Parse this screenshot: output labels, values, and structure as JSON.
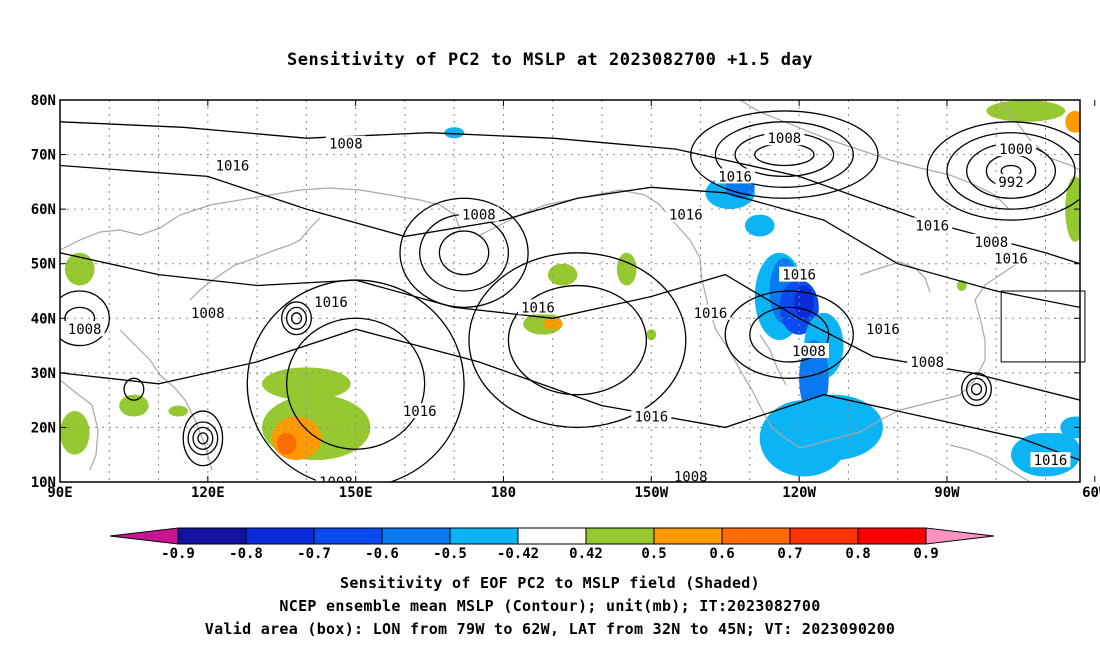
{
  "title": "Sensitivity of PC2 to MSLP at 2023082700 +1.5 day",
  "lat_labels": [
    "80N",
    "70N",
    "60N",
    "50N",
    "40N",
    "30N",
    "20N",
    "10N"
  ],
  "lon_labels": [
    "90E",
    "120E",
    "150E",
    "180",
    "150W",
    "120W",
    "90W",
    "60W"
  ],
  "map": {
    "lon_range_deg_east": [
      90,
      297
    ],
    "lat_range": [
      10,
      80
    ],
    "grid_interval_deg": 10,
    "grid_style": "dotted",
    "land_outline_color": "#a8a8a8",
    "contour_color": "#000000",
    "valid_box": {
      "lon_west_deg": 79,
      "lon_east_deg": 62,
      "lat_south": 32,
      "lat_north": 45
    }
  },
  "contour_labels": [
    {
      "text": "1008",
      "lon": 148,
      "lat": 72
    },
    {
      "text": "1016",
      "lon": 125,
      "lat": 68
    },
    {
      "text": "1008",
      "lon": 237,
      "lat": 73
    },
    {
      "text": "1016",
      "lon": 227,
      "lat": 66
    },
    {
      "text": "1016",
      "lon": 217,
      "lat": 59
    },
    {
      "text": "1000",
      "lon": 284,
      "lat": 71
    },
    {
      "text": "992",
      "lon": 283,
      "lat": 65
    },
    {
      "text": "1008",
      "lon": 175,
      "lat": 59
    },
    {
      "text": "1016",
      "lon": 267,
      "lat": 57
    },
    {
      "text": "1008",
      "lon": 279,
      "lat": 54
    },
    {
      "text": "1016",
      "lon": 283,
      "lat": 51
    },
    {
      "text": "1016",
      "lon": 145,
      "lat": 43
    },
    {
      "text": "1008",
      "lon": 120,
      "lat": 41
    },
    {
      "text": "1008",
      "lon": 95,
      "lat": 38
    },
    {
      "text": "1016",
      "lon": 187,
      "lat": 42
    },
    {
      "text": "1016",
      "lon": 240,
      "lat": 48
    },
    {
      "text": "1016",
      "lon": 222,
      "lat": 41
    },
    {
      "text": "1016",
      "lon": 257,
      "lat": 38
    },
    {
      "text": "1008",
      "lon": 242,
      "lat": 34
    },
    {
      "text": "1008",
      "lon": 266,
      "lat": 32
    },
    {
      "text": "1016",
      "lon": 163,
      "lat": 23
    },
    {
      "text": "1016",
      "lon": 210,
      "lat": 22
    },
    {
      "text": "1008",
      "lon": 146,
      "lat": 10
    },
    {
      "text": "1008",
      "lon": 218,
      "lat": 11
    },
    {
      "text": "1016",
      "lon": 291,
      "lat": 14
    }
  ],
  "contour_lines": [
    {
      "center": [
        237,
        70
      ],
      "rx": [
        6,
        10,
        14,
        19
      ],
      "ry": [
        2,
        4,
        6,
        8
      ]
    },
    {
      "center": [
        283,
        67
      ],
      "rx": [
        2,
        5,
        9,
        13,
        17
      ],
      "ry": [
        1,
        3,
        5,
        7,
        9
      ]
    },
    {
      "center": [
        172,
        52
      ],
      "rx": [
        5,
        9,
        13
      ],
      "ry": [
        4,
        7,
        10
      ]
    },
    {
      "center": [
        138,
        40
      ],
      "rx": [
        1,
        2,
        3
      ],
      "ry": [
        1,
        2,
        3
      ]
    },
    {
      "center": [
        276,
        27
      ],
      "rx": [
        1,
        2,
        3
      ],
      "ry": [
        1,
        2,
        3
      ]
    },
    {
      "center": [
        119,
        18
      ],
      "rx": [
        1,
        2,
        3,
        4
      ],
      "ry": [
        1,
        2,
        3,
        5
      ]
    },
    {
      "center": [
        94,
        40
      ],
      "rx": [
        3,
        6
      ],
      "ry": [
        2,
        5
      ]
    },
    {
      "center": [
        105,
        27
      ],
      "rx": [
        2
      ],
      "ry": [
        2
      ]
    },
    {
      "center": [
        238,
        37
      ],
      "rx": [
        8,
        13
      ],
      "ry": [
        5,
        8
      ]
    },
    {
      "center": [
        195,
        36
      ],
      "rx": [
        14,
        22
      ],
      "ry": [
        10,
        16
      ]
    },
    {
      "center": [
        150,
        28
      ],
      "rx": [
        14,
        22
      ],
      "ry": [
        12,
        19
      ]
    }
  ],
  "shaded_regions": [
    {
      "value": -0.5,
      "lon": 226,
      "lat": 63,
      "rx": 5,
      "ry": 3
    },
    {
      "value": -0.6,
      "lon": 228,
      "lat": 64,
      "rx": 3,
      "ry": 2
    },
    {
      "value": -0.5,
      "lon": 232,
      "lat": 57,
      "rx": 3,
      "ry": 2
    },
    {
      "value": -0.5,
      "lon": 236,
      "lat": 44,
      "rx": 5,
      "ry": 8
    },
    {
      "value": -0.6,
      "lon": 237,
      "lat": 45,
      "rx": 3,
      "ry": 6
    },
    {
      "value": -0.7,
      "lon": 240,
      "lat": 42,
      "rx": 4,
      "ry": 5
    },
    {
      "value": -0.8,
      "lon": 241,
      "lat": 43,
      "rx": 2,
      "ry": 3
    },
    {
      "value": -0.5,
      "lon": 245,
      "lat": 35,
      "rx": 4,
      "ry": 6
    },
    {
      "value": -0.6,
      "lon": 243,
      "lat": 29,
      "rx": 3,
      "ry": 7
    },
    {
      "value": -0.5,
      "lon": 241,
      "lat": 18,
      "rx": 9,
      "ry": 7
    },
    {
      "value": -0.42,
      "lon": 247,
      "lat": 20,
      "rx": 10,
      "ry": 6
    },
    {
      "value": -0.42,
      "lon": 290,
      "lat": 15,
      "rx": 7,
      "ry": 4
    },
    {
      "value": -0.5,
      "lon": 292,
      "lat": 16,
      "rx": 5,
      "ry": 3
    },
    {
      "value": -0.42,
      "lon": 296,
      "lat": 20,
      "rx": 3,
      "ry": 2
    },
    {
      "value": -0.42,
      "lon": 170,
      "lat": 74,
      "rx": 2,
      "ry": 1
    },
    {
      "value": 0.5,
      "lon": 142,
      "lat": 20,
      "rx": 11,
      "ry": 6
    },
    {
      "value": 0.6,
      "lon": 138,
      "lat": 18,
      "rx": 5,
      "ry": 4
    },
    {
      "value": 0.7,
      "lon": 136,
      "lat": 17,
      "rx": 2,
      "ry": 2
    },
    {
      "value": 0.5,
      "lon": 140,
      "lat": 28,
      "rx": 9,
      "ry": 3
    },
    {
      "value": 0.5,
      "lon": 188,
      "lat": 39,
      "rx": 4,
      "ry": 2
    },
    {
      "value": 0.6,
      "lon": 190,
      "lat": 39,
      "rx": 2,
      "ry": 1
    },
    {
      "value": 0.5,
      "lon": 192,
      "lat": 48,
      "rx": 3,
      "ry": 2
    },
    {
      "value": 0.5,
      "lon": 205,
      "lat": 49,
      "rx": 2,
      "ry": 3
    },
    {
      "value": 0.5,
      "lon": 94,
      "lat": 49,
      "rx": 3,
      "ry": 3
    },
    {
      "value": 0.5,
      "lon": 93,
      "lat": 19,
      "rx": 3,
      "ry": 4
    },
    {
      "value": 0.5,
      "lon": 105,
      "lat": 24,
      "rx": 3,
      "ry": 2
    },
    {
      "value": 0.5,
      "lon": 114,
      "lat": 23,
      "rx": 2,
      "ry": 1
    },
    {
      "value": 0.5,
      "lon": 286,
      "lat": 78,
      "rx": 8,
      "ry": 2
    },
    {
      "value": 0.5,
      "lon": 296,
      "lat": 60,
      "rx": 2,
      "ry": 6
    },
    {
      "value": 0.6,
      "lon": 296,
      "lat": 76,
      "rx": 2,
      "ry": 2
    },
    {
      "value": 0.5,
      "lon": 273,
      "lat": 46,
      "rx": 1,
      "ry": 1
    },
    {
      "value": 0.5,
      "lon": 210,
      "lat": 37,
      "rx": 1,
      "ry": 1
    }
  ],
  "colorbar": {
    "tick_labels": [
      "-0.9",
      "-0.8",
      "-0.7",
      "-0.6",
      "-0.5",
      "-0.42",
      "0.42",
      "0.5",
      "0.6",
      "0.7",
      "0.8",
      "0.9"
    ],
    "colors": [
      "#c81691",
      "#1212a0",
      "#0a2bdc",
      "#0a4bf0",
      "#0a78f0",
      "#0ab4f5",
      "#ffffff",
      "#96c832",
      "#ff9b00",
      "#ff6c00",
      "#ff3400",
      "#ff0000",
      "#ff91c3"
    ]
  },
  "captions": {
    "line1": "Sensitivity of EOF PC2 to MSLP field (Shaded)",
    "line2": "NCEP ensemble mean MSLP (Contour); unit(mb); IT:2023082700",
    "line3": "Valid area (box): LON from 79W to 62W, LAT from 32N to 45N; VT: 2023090200"
  }
}
